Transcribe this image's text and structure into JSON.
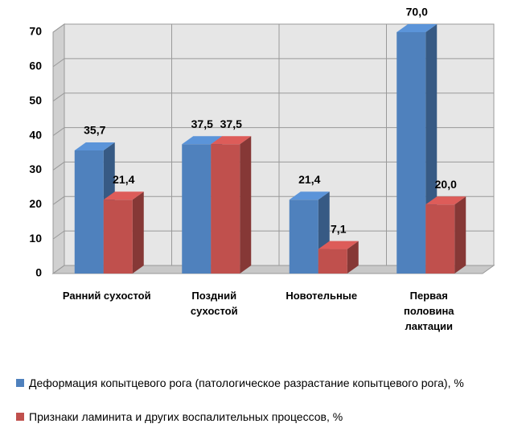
{
  "chart_data": {
    "type": "bar3d",
    "categories": [
      "Ранний сухостой",
      "Поздний сухостой",
      "Новотельные",
      "Первая половина лактации"
    ],
    "series": [
      {
        "name": "Деформация копытцевого рога (патологическое разрастание копытцевого рога), %",
        "color": "#4f81bd",
        "values": [
          35.7,
          37.5,
          21.4,
          70.0
        ],
        "value_labels": [
          "35,7",
          "37,5",
          "21,4",
          "70,0"
        ]
      },
      {
        "name": "Признаки ламинита и других воспалительных процессов, %",
        "color": "#c0504d",
        "values": [
          21.4,
          37.5,
          7.1,
          20.0
        ],
        "value_labels": [
          "21,4",
          "37,5",
          "7,1",
          "20,0"
        ]
      }
    ],
    "ylim": [
      0,
      70
    ],
    "yticks": [
      0,
      10,
      20,
      30,
      40,
      50,
      60,
      70
    ],
    "grid": true
  }
}
